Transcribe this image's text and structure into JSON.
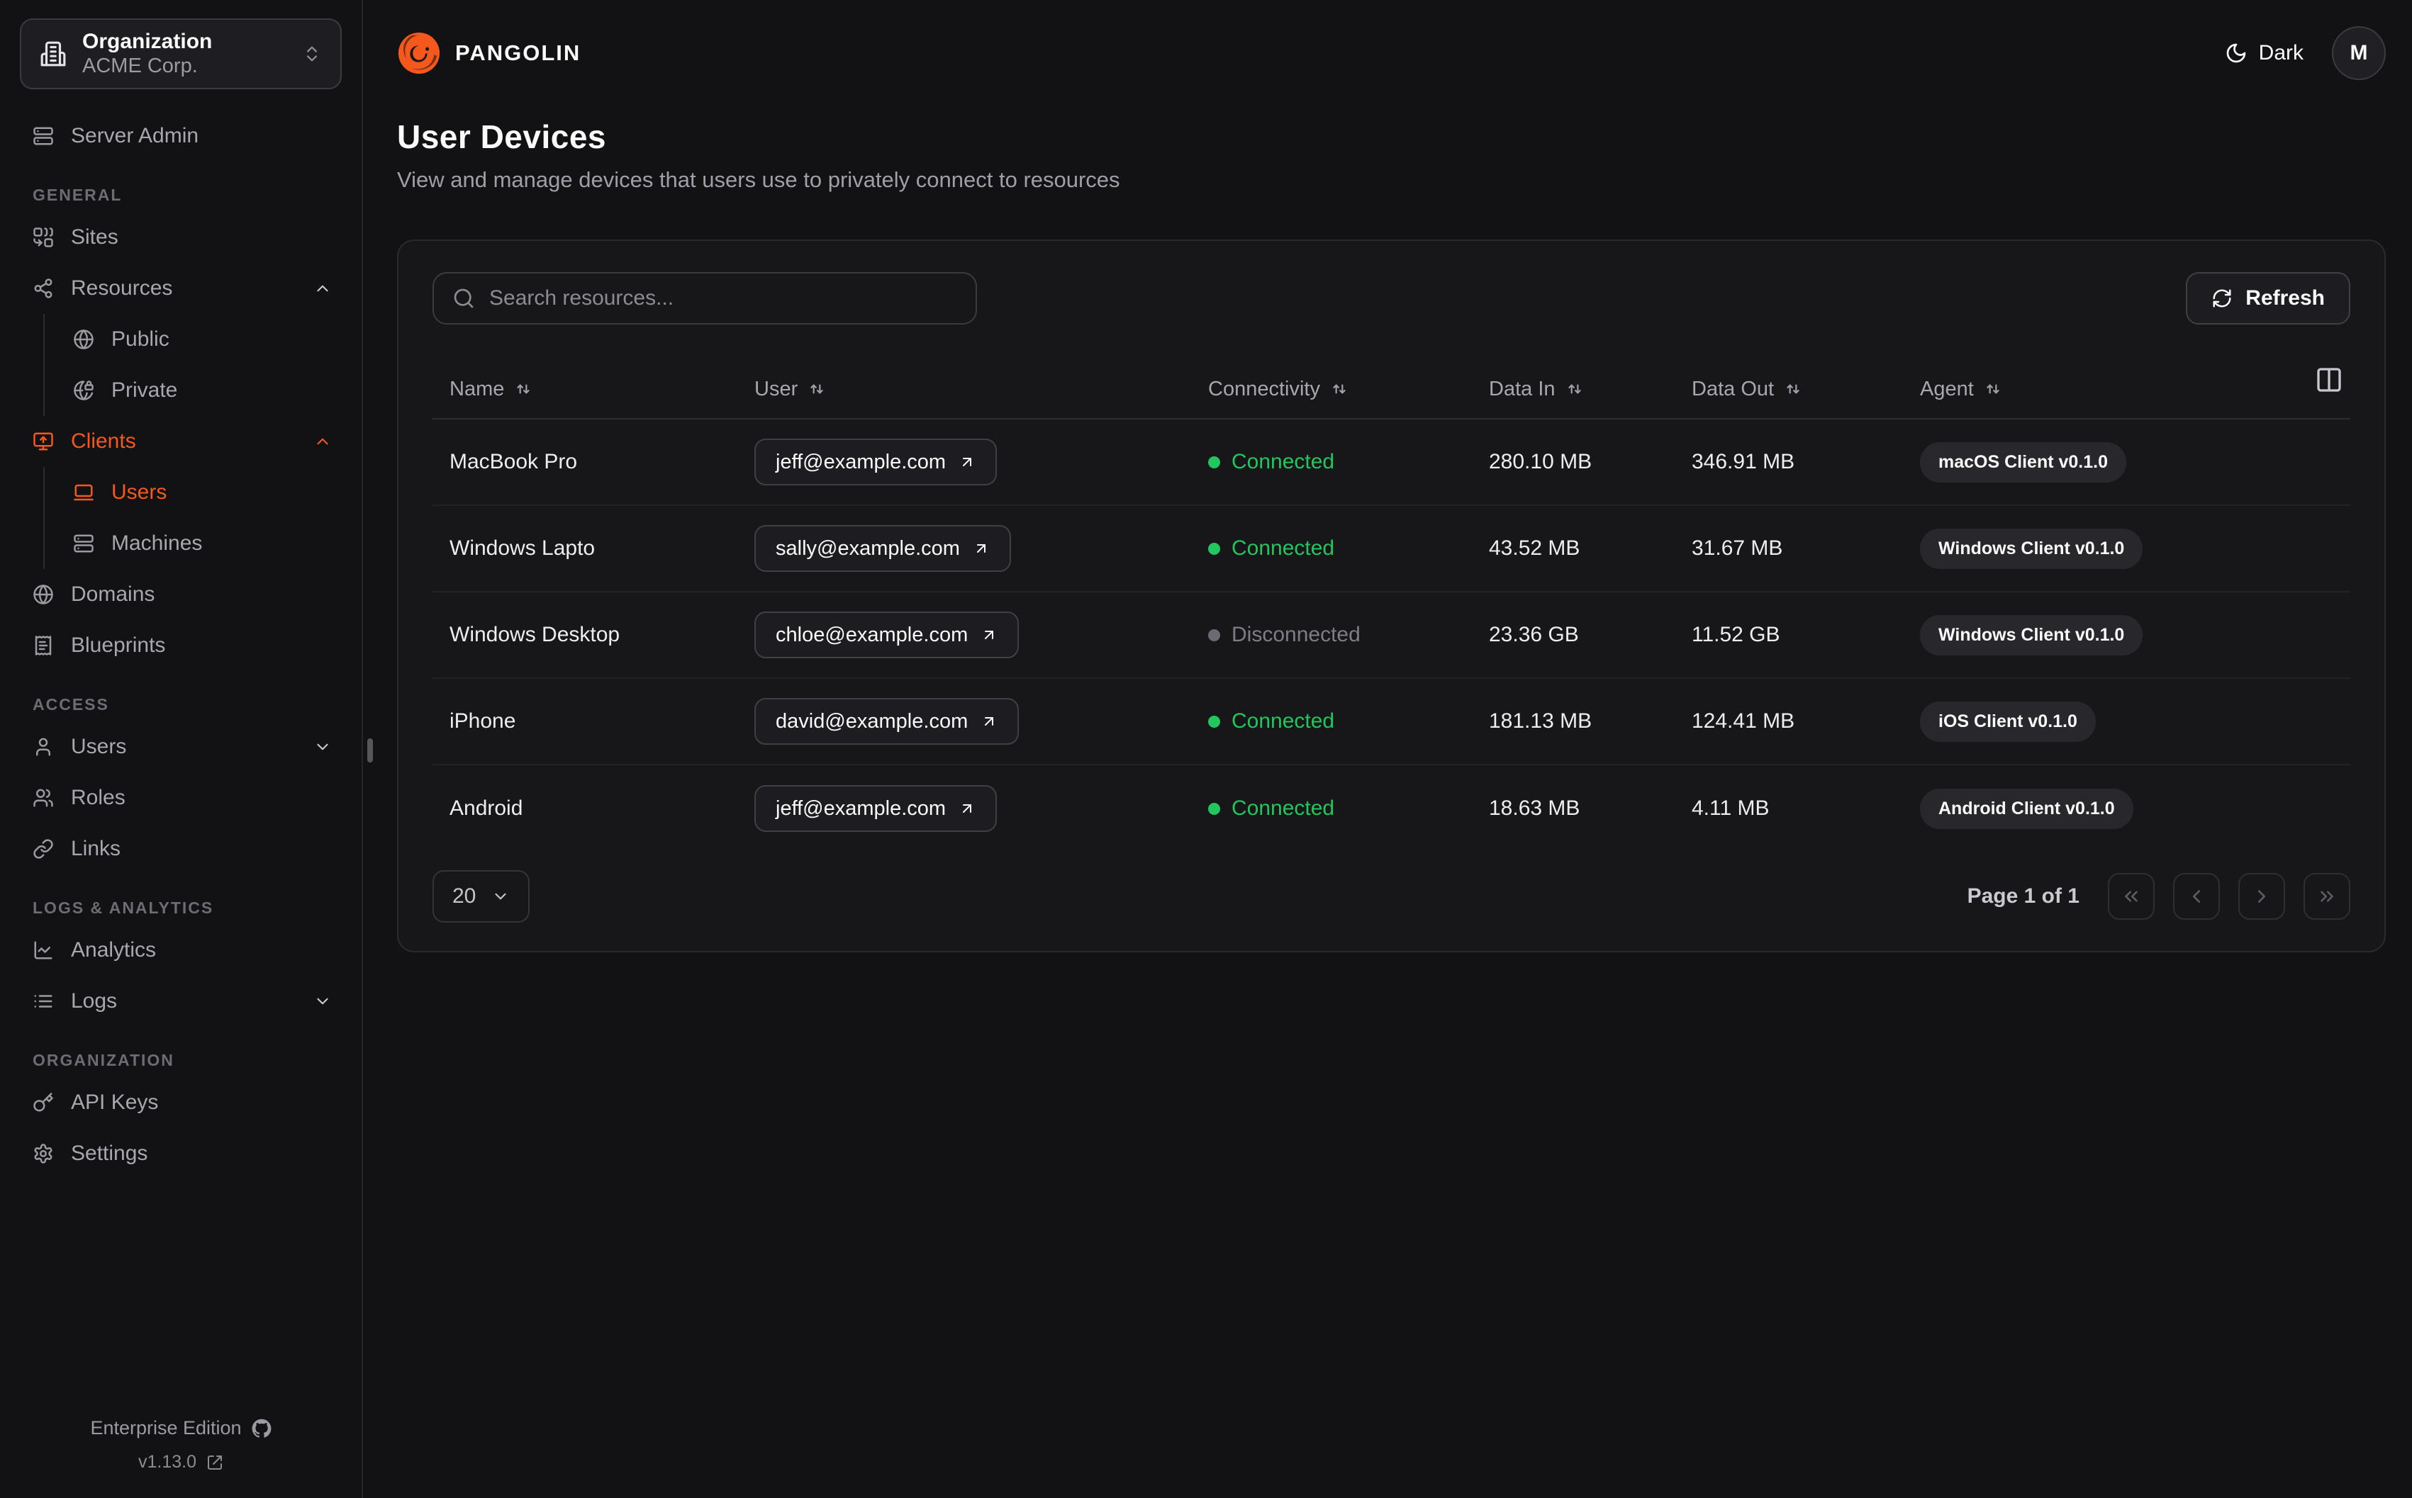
{
  "colors": {
    "accent": "#f4581c",
    "green": "#22c55e",
    "background": "#121214",
    "card": "#17171a"
  },
  "org": {
    "label": "Organization",
    "value": "ACME Corp."
  },
  "sidebar": {
    "top_item": {
      "label": "Server Admin",
      "icon": "server"
    },
    "sections": [
      {
        "label": "GENERAL",
        "items": [
          {
            "label": "Sites",
            "icon": "combine"
          },
          {
            "label": "Resources",
            "icon": "waypoints",
            "chevron": "up",
            "children": [
              {
                "label": "Public",
                "icon": "globe"
              },
              {
                "label": "Private",
                "icon": "globe-lock"
              }
            ]
          },
          {
            "label": "Clients",
            "icon": "monitor-up",
            "active": true,
            "chevron": "up",
            "children": [
              {
                "label": "Users",
                "icon": "laptop",
                "active": true
              },
              {
                "label": "Machines",
                "icon": "server"
              }
            ]
          },
          {
            "label": "Domains",
            "icon": "globe"
          },
          {
            "label": "Blueprints",
            "icon": "receipt"
          }
        ]
      },
      {
        "label": "ACCESS",
        "items": [
          {
            "label": "Users",
            "icon": "user",
            "chevron": "down"
          },
          {
            "label": "Roles",
            "icon": "users"
          },
          {
            "label": "Links",
            "icon": "link"
          }
        ]
      },
      {
        "label": "LOGS & ANALYTICS",
        "items": [
          {
            "label": "Analytics",
            "icon": "chart"
          },
          {
            "label": "Logs",
            "icon": "list",
            "chevron": "down"
          }
        ]
      },
      {
        "label": "ORGANIZATION",
        "items": [
          {
            "label": "API Keys",
            "icon": "key"
          },
          {
            "label": "Settings",
            "icon": "gear"
          }
        ]
      }
    ],
    "footer": {
      "edition": "Enterprise Edition",
      "version": "v1.13.0"
    }
  },
  "header": {
    "brand": "PANGOLIN",
    "theme_label": "Dark",
    "avatar_initial": "M"
  },
  "page": {
    "title": "User Devices",
    "subtitle": "View and manage devices that users use to privately connect to resources"
  },
  "toolbar": {
    "search_placeholder": "Search resources...",
    "refresh_label": "Refresh"
  },
  "table": {
    "columns": [
      "Name",
      "User",
      "Connectivity",
      "Data In",
      "Data Out",
      "Agent"
    ],
    "rows": [
      {
        "name": "MacBook Pro",
        "user": "jeff@example.com",
        "connectivity": "Connected",
        "connected": true,
        "data_in": "280.10 MB",
        "data_out": "346.91 MB",
        "agent": "macOS Client v0.1.0"
      },
      {
        "name": "Windows Lapto",
        "user": "sally@example.com",
        "connectivity": "Connected",
        "connected": true,
        "data_in": "43.52 MB",
        "data_out": "31.67 MB",
        "agent": "Windows Client v0.1.0"
      },
      {
        "name": "Windows Desktop",
        "user": "chloe@example.com",
        "connectivity": "Disconnected",
        "connected": false,
        "data_in": "23.36 GB",
        "data_out": "11.52 GB",
        "agent": "Windows Client v0.1.0"
      },
      {
        "name": "iPhone",
        "user": "david@example.com",
        "connectivity": "Connected",
        "connected": true,
        "data_in": "181.13 MB",
        "data_out": "124.41 MB",
        "agent": "iOS Client v0.1.0"
      },
      {
        "name": "Android",
        "user": "jeff@example.com",
        "connectivity": "Connected",
        "connected": true,
        "data_in": "18.63 MB",
        "data_out": "4.11 MB",
        "agent": "Android Client v0.1.0"
      }
    ]
  },
  "pagination": {
    "page_size": "20",
    "label": "Page 1 of 1"
  }
}
